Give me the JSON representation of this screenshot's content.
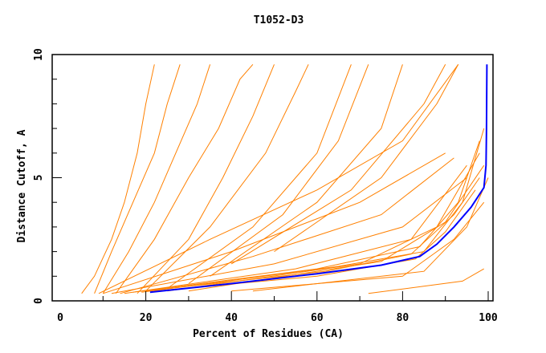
{
  "chart_data": {
    "type": "line",
    "title": "T1052-D3",
    "xlabel": "Percent of Residues (CA)",
    "ylabel": "Distance Cutoff, A",
    "xlim": [
      -2,
      101
    ],
    "ylim": [
      0,
      10
    ],
    "x_ticks": [
      "0",
      "20",
      "40",
      "60",
      "80",
      "100"
    ],
    "y_ticks": [
      "0",
      "5",
      "10"
    ],
    "grid": false,
    "colors": {
      "models": "#ff8000",
      "highlight": "#0000ff",
      "axes": "#000000"
    },
    "series": [
      {
        "highlight": true,
        "points": [
          [
            21,
            0.35
          ],
          [
            40,
            0.7
          ],
          [
            60,
            1.1
          ],
          [
            75,
            1.45
          ],
          [
            84,
            1.8
          ],
          [
            88,
            2.3
          ],
          [
            92,
            3.0
          ],
          [
            96,
            3.8
          ],
          [
            99,
            4.6
          ],
          [
            99.5,
            5.5
          ],
          [
            99.6,
            7
          ],
          [
            99.7,
            9.6
          ]
        ]
      },
      {
        "points": [
          [
            5,
            0.3
          ],
          [
            8,
            1
          ],
          [
            12,
            2.5
          ],
          [
            15,
            4
          ],
          [
            18,
            6
          ],
          [
            20,
            8
          ],
          [
            22,
            9.6
          ]
        ]
      },
      {
        "points": [
          [
            8,
            0.3
          ],
          [
            12,
            2
          ],
          [
            17,
            4
          ],
          [
            22,
            6
          ],
          [
            25,
            8
          ],
          [
            28,
            9.6
          ]
        ]
      },
      {
        "points": [
          [
            10,
            0.3
          ],
          [
            16,
            2
          ],
          [
            22,
            4
          ],
          [
            27,
            6
          ],
          [
            32,
            8
          ],
          [
            35,
            9.6
          ]
        ]
      },
      {
        "points": [
          [
            13,
            0.3
          ],
          [
            22,
            2.5
          ],
          [
            30,
            5
          ],
          [
            37,
            7
          ],
          [
            42,
            9
          ],
          [
            45,
            9.6
          ]
        ]
      },
      {
        "points": [
          [
            18,
            0.3
          ],
          [
            30,
            2.5
          ],
          [
            38,
            5
          ],
          [
            45,
            7.5
          ],
          [
            50,
            9.6
          ]
        ]
      },
      {
        "points": [
          [
            20,
            0.4
          ],
          [
            35,
            3
          ],
          [
            48,
            6
          ],
          [
            55,
            8.5
          ],
          [
            58,
            9.6
          ]
        ]
      },
      {
        "points": [
          [
            25,
            0.5
          ],
          [
            45,
            3
          ],
          [
            60,
            6
          ],
          [
            68,
            9.6
          ]
        ]
      },
      {
        "points": [
          [
            30,
            0.7
          ],
          [
            52,
            3.5
          ],
          [
            65,
            6.5
          ],
          [
            72,
            9.6
          ]
        ]
      },
      {
        "points": [
          [
            35,
            1
          ],
          [
            60,
            4
          ],
          [
            75,
            7
          ],
          [
            80,
            9.6
          ]
        ]
      },
      {
        "points": [
          [
            40,
            1.5
          ],
          [
            68,
            4.5
          ],
          [
            85,
            8
          ],
          [
            90,
            9.6
          ]
        ]
      },
      {
        "points": [
          [
            50,
            2
          ],
          [
            75,
            5
          ],
          [
            88,
            8
          ],
          [
            93,
            9.6
          ]
        ]
      },
      {
        "points": [
          [
            9,
            0.3
          ],
          [
            35,
            2.5
          ],
          [
            60,
            4.5
          ],
          [
            80,
            6.5
          ],
          [
            93,
            9.6
          ]
        ]
      },
      {
        "points": [
          [
            12,
            0.3
          ],
          [
            50,
            1.5
          ],
          [
            80,
            3
          ],
          [
            95,
            5
          ]
        ]
      },
      {
        "points": [
          [
            15,
            0.3
          ],
          [
            55,
            1.3
          ],
          [
            82,
            2.5
          ],
          [
            95,
            5.5
          ]
        ]
      },
      {
        "points": [
          [
            17,
            0.35
          ],
          [
            60,
            1.3
          ],
          [
            84,
            2.2
          ],
          [
            93,
            4
          ],
          [
            98,
            6.5
          ]
        ]
      },
      {
        "points": [
          [
            19,
            0.35
          ],
          [
            65,
            1.4
          ],
          [
            85,
            2
          ],
          [
            94,
            4
          ],
          [
            99,
            7
          ]
        ]
      },
      {
        "points": [
          [
            14,
            0.3
          ],
          [
            45,
            1.8
          ],
          [
            75,
            3.5
          ],
          [
            92,
            5.8
          ]
        ]
      },
      {
        "points": [
          [
            10,
            0.3
          ],
          [
            40,
            2
          ],
          [
            70,
            4
          ],
          [
            90,
            6
          ]
        ]
      },
      {
        "points": [
          [
            20,
            0.4
          ],
          [
            62,
            1.2
          ],
          [
            82,
            1.9
          ],
          [
            92,
            3.5
          ],
          [
            98,
            5
          ]
        ]
      },
      {
        "points": [
          [
            22,
            0.4
          ],
          [
            60,
            1.0
          ],
          [
            83,
            1.7
          ],
          [
            90,
            2.8
          ],
          [
            97,
            4.5
          ]
        ]
      },
      {
        "points": [
          [
            25,
            0.4
          ],
          [
            70,
            1.5
          ],
          [
            88,
            3
          ],
          [
            98,
            6
          ]
        ]
      },
      {
        "points": [
          [
            30,
            0.4
          ],
          [
            75,
            1.6
          ],
          [
            90,
            3.2
          ],
          [
            99,
            5.5
          ]
        ]
      },
      {
        "points": [
          [
            40,
            0.4
          ],
          [
            80,
            1
          ],
          [
            92,
            2.5
          ],
          [
            99,
            4
          ]
        ]
      },
      {
        "points": [
          [
            45,
            0.4
          ],
          [
            85,
            1.2
          ],
          [
            95,
            3
          ],
          [
            100,
            5
          ]
        ]
      },
      {
        "points": [
          [
            72,
            0.3
          ],
          [
            94,
            0.8
          ],
          [
            99,
            1.3
          ]
        ]
      }
    ]
  }
}
